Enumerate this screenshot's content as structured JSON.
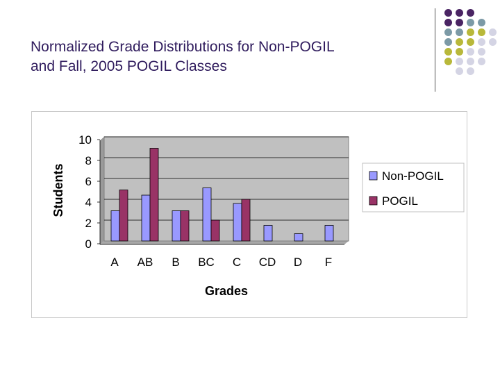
{
  "slide": {
    "title_lines": [
      "Normalized Grade Distributions for Non-POGIL",
      "and Fall, 2005 POGIL Classes"
    ]
  },
  "decoration": {
    "colors": [
      "#4a2463",
      "#7c9aa6",
      "#b8b83a",
      "#d4d4e4"
    ]
  },
  "chart_data": {
    "type": "bar",
    "title": "",
    "xlabel": "Grades",
    "ylabel": "Students",
    "categories": [
      "A",
      "AB",
      "B",
      "BC",
      "C",
      "CD",
      "D",
      "F"
    ],
    "series": [
      {
        "name": "Non-POGIL",
        "color": "#9999ff",
        "values": [
          2.9,
          4.4,
          2.9,
          5.1,
          3.6,
          1.5,
          0.7,
          1.5
        ]
      },
      {
        "name": "POGIL",
        "color": "#993366",
        "values": [
          4.9,
          8.9,
          2.9,
          2.0,
          4.0,
          0,
          0,
          0
        ]
      }
    ],
    "ylim": [
      0,
      10
    ],
    "yticks": [
      0,
      2,
      4,
      6,
      8,
      10
    ],
    "grid": true,
    "plot_background": "#c0c0c0",
    "legend": "right"
  }
}
